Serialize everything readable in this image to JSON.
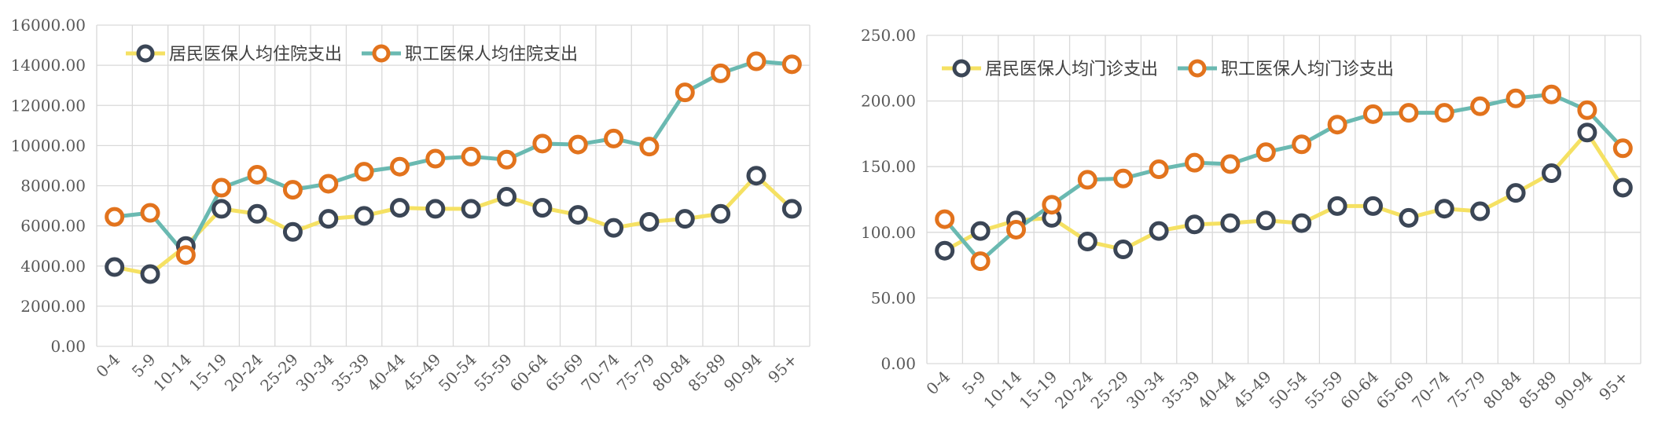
{
  "chart_data": [
    {
      "type": "line",
      "categories": [
        "0-4",
        "5-9",
        "10-14",
        "15-19",
        "20-24",
        "25-29",
        "30-34",
        "35-39",
        "40-44",
        "45-49",
        "50-54",
        "55-59",
        "60-64",
        "65-69",
        "70-74",
        "75-79",
        "80-84",
        "85-89",
        "90-94",
        "95+"
      ],
      "series": [
        {
          "name": "居民医保人均住院支出",
          "line_color": "#f5e163",
          "marker_color": "#3b4656",
          "values": [
            3950,
            3600,
            5000,
            6850,
            6600,
            5700,
            6350,
            6500,
            6900,
            6850,
            6850,
            7450,
            6900,
            6550,
            5900,
            6200,
            6350,
            6600,
            8500,
            6850
          ]
        },
        {
          "name": "职工医保人均住院支出",
          "line_color": "#6ab9b1",
          "marker_color": "#e2731d",
          "values": [
            6450,
            6650,
            4550,
            7900,
            8550,
            7800,
            8100,
            8700,
            8950,
            9350,
            9450,
            9300,
            10100,
            10050,
            10350,
            9950,
            12650,
            13600,
            14200,
            14050
          ]
        }
      ],
      "ylim": [
        0,
        16000
      ],
      "yticks": [
        "0.00",
        "2000.00",
        "4000.00",
        "6000.00",
        "8000.00",
        "10000.00",
        "12000.00",
        "14000.00",
        "16000.00"
      ],
      "grid": true,
      "legend": "top-left"
    },
    {
      "type": "line",
      "categories": [
        "0-4",
        "5-9",
        "10-14",
        "15-19",
        "20-24",
        "25-29",
        "30-34",
        "35-39",
        "40-44",
        "45-49",
        "50-54",
        "55-59",
        "60-64",
        "65-69",
        "70-74",
        "75-79",
        "80-84",
        "85-89",
        "90-94",
        "95+"
      ],
      "series": [
        {
          "name": "居民医保人均门诊支出",
          "line_color": "#f5e163",
          "marker_color": "#3b4656",
          "values": [
            86,
            101,
            109,
            111,
            93,
            87,
            101,
            106,
            107,
            109,
            107,
            120,
            120,
            111,
            118,
            116,
            130,
            145,
            176,
            134
          ]
        },
        {
          "name": "职工医保人均门诊支出",
          "line_color": "#6ab9b1",
          "marker_color": "#e2731d",
          "values": [
            110,
            78,
            102,
            121,
            140,
            141,
            148,
            153,
            152,
            161,
            167,
            182,
            190,
            191,
            191,
            196,
            202,
            205,
            193,
            164
          ]
        }
      ],
      "ylim": [
        0,
        250
      ],
      "yticks": [
        "0.00",
        "50.00",
        "100.00",
        "150.00",
        "200.00",
        "250.00"
      ],
      "grid": true,
      "legend": "top-left"
    }
  ]
}
